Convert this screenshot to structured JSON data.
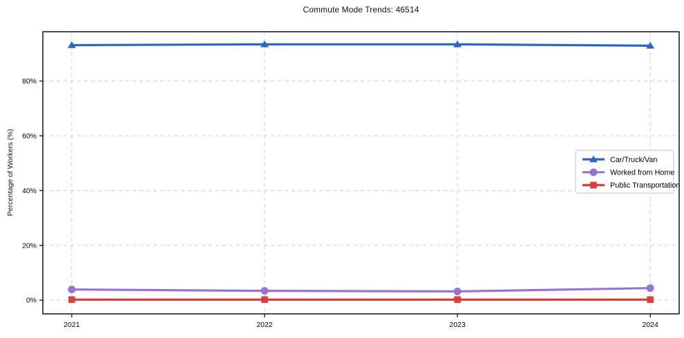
{
  "chart_data": {
    "type": "line",
    "title": "Commute Mode Trends: 46514",
    "xlabel": "",
    "ylabel": "Percentage of Workers (%)",
    "categories": [
      "2021",
      "2022",
      "2023",
      "2024"
    ],
    "ytick_values": [
      0,
      20,
      40,
      60,
      80
    ],
    "ytick_labels": [
      "0%",
      "20%",
      "40%",
      "60%",
      "80%"
    ],
    "ylim": [
      -5,
      98
    ],
    "grid": true,
    "grid_style": "dashed",
    "legend_position": "center-right",
    "series": [
      {
        "name": "Car/Truck/Van",
        "marker": "triangle",
        "color": "#2b65c6",
        "values": [
          93.1,
          93.4,
          93.4,
          92.9
        ]
      },
      {
        "name": "Worked from Home",
        "marker": "circle",
        "color": "#9673d4",
        "values": [
          3.9,
          3.4,
          3.2,
          4.4
        ]
      },
      {
        "name": "Public Transportation",
        "marker": "square",
        "color": "#dc3f3a",
        "values": [
          0.2,
          0.2,
          0.2,
          0.2
        ]
      }
    ],
    "colors": {
      "grid": "#cccccc",
      "spine": "#000000",
      "text": "#000000",
      "background": "#ffffff"
    }
  }
}
